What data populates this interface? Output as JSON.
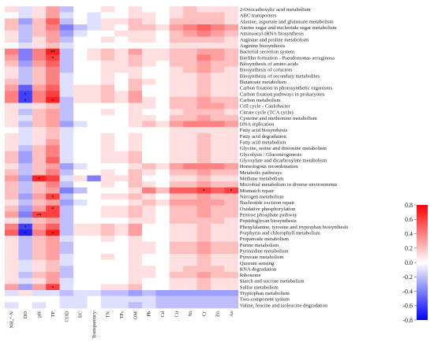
{
  "chart_data": {
    "type": "heatmap",
    "title": "",
    "xlabel": "",
    "ylabel": "",
    "columns": [
      "NH₄⁺-N",
      "DO",
      "pH",
      "TP",
      "COD",
      "EC",
      "Transparency",
      "TN",
      "TPₛ",
      "OM",
      "Pb",
      "Cd",
      "Cu",
      "Ni",
      "Cr",
      "Zn",
      "As"
    ],
    "rows": [
      "2-Oxocarboxylic acid metabolism",
      "ABC transporters",
      "Alanine, aspartate and glutamate metabolism",
      "Amino sugar and nucleotide sugar metabolism",
      "Aminoacyl-tRNA biosynthesis",
      "Arginine and proline metabolism",
      "Arginine biosynthesis",
      "Bacterial secretion system",
      "Biofilm formation - Pseudomonas aeruginosa",
      "Biosynthesis of amino acids",
      "Biosynthesis of cofactors",
      "Biosynthesis of secondary metabolites",
      "Butanoate metabolism",
      "Carbon fixation in photosynthetic organisms",
      "Carbon fixation pathways in prokaryotes",
      "Carbon metabolism",
      "Cell cycle - Caulobacter",
      "Citrate cycle (TCA cycle)",
      "Cysteine and methionine metabolism",
      "DNA replication",
      "Fatty acid biosynthesis",
      "Fatty acid degradation",
      "Fatty acid metabolism",
      "Glycine, serine and threonine metabolism",
      "Glycolysis / Gluconeogenesis",
      "Glyoxylate and dicarboxylate metabolism",
      "Homologous recombination",
      "Metabolic pathways",
      "Methane metabolism",
      "Microbial metabolism in diverse environments",
      "Mismatch repair",
      "Nitrogen metabolism",
      "Nucleotide excision repair",
      "Oxidative phosphorylation",
      "Pentose phosphate pathway",
      "Peptidoglycan biosynthesis",
      "Phenylalanine, tyrosine and tryptophan biosynthesis",
      "Porphyrin and chlorophyll metabolism",
      "Propanoate metabolism",
      "Purine metabolism",
      "Pyrimidine metabolism",
      "Pyruvate metabolism",
      "Quorum sensing",
      "RNA degradation",
      "Ribosome",
      "Starch and sucrose metabolism",
      "Sulfur metabolism",
      "Tryptophan metabolism",
      "Two-component system",
      "Valine, leucine and isoleucine degradation"
    ],
    "values": [
      [
        0.1,
        -0.1,
        0.1,
        0.3,
        -0.2,
        0.0,
        0.0,
        0.1,
        0.0,
        0.1,
        0.0,
        0.0,
        0.1,
        0.2,
        0.1,
        0.1,
        0.1
      ],
      [
        0.0,
        -0.1,
        0.1,
        0.3,
        -0.1,
        0.0,
        -0.1,
        0.0,
        0.0,
        0.1,
        0.1,
        0.0,
        0.1,
        0.2,
        0.2,
        0.2,
        0.1
      ],
      [
        0.2,
        -0.3,
        0.2,
        0.5,
        -0.2,
        0.0,
        -0.1,
        0.1,
        0.1,
        0.2,
        0.1,
        0.0,
        0.2,
        0.2,
        0.2,
        0.2,
        0.1
      ],
      [
        0.2,
        -0.2,
        0.2,
        0.4,
        -0.4,
        -0.2,
        -0.1,
        0.1,
        0.0,
        0.2,
        0.2,
        0.1,
        0.3,
        0.4,
        0.5,
        0.4,
        0.3
      ],
      [
        0.1,
        -0.2,
        0.2,
        0.3,
        -0.3,
        -0.1,
        0.0,
        0.0,
        0.1,
        0.1,
        0.1,
        0.0,
        0.2,
        0.3,
        0.4,
        0.3,
        0.2
      ],
      [
        0.1,
        -0.2,
        0.1,
        0.3,
        -0.2,
        0.0,
        0.0,
        0.1,
        0.0,
        0.1,
        0.1,
        0.0,
        0.2,
        0.2,
        0.2,
        0.2,
        0.1
      ],
      [
        0.0,
        -0.1,
        0.1,
        0.2,
        -0.1,
        0.0,
        0.0,
        0.0,
        0.0,
        0.0,
        0.0,
        0.0,
        0.1,
        0.1,
        0.1,
        0.1,
        0.1
      ],
      [
        0.4,
        -0.4,
        0.4,
        0.7,
        -0.2,
        0.0,
        0.1,
        0.2,
        0.1,
        0.3,
        0.1,
        0.1,
        0.2,
        0.2,
        0.3,
        0.3,
        0.2
      ],
      [
        0.3,
        -0.4,
        0.4,
        0.6,
        -0.2,
        0.0,
        0.1,
        0.2,
        0.1,
        0.2,
        0.1,
        0.1,
        0.2,
        0.2,
        0.4,
        0.3,
        0.2
      ],
      [
        0.2,
        -0.3,
        0.3,
        0.5,
        -0.2,
        0.0,
        0.0,
        0.1,
        0.1,
        0.2,
        0.1,
        0.0,
        0.2,
        0.2,
        0.3,
        0.2,
        0.2
      ],
      [
        0.1,
        -0.2,
        0.2,
        0.4,
        -0.2,
        0.0,
        0.0,
        0.1,
        0.1,
        0.1,
        0.0,
        0.0,
        0.1,
        0.2,
        0.3,
        0.2,
        0.1
      ],
      [
        0.1,
        -0.2,
        0.2,
        0.4,
        -0.1,
        0.0,
        0.0,
        0.1,
        0.0,
        0.1,
        0.0,
        0.0,
        0.1,
        0.1,
        0.2,
        0.1,
        0.1
      ],
      [
        0.2,
        -0.2,
        0.2,
        0.4,
        -0.1,
        0.0,
        0.0,
        0.1,
        0.0,
        0.2,
        0.1,
        0.0,
        0.1,
        0.1,
        0.2,
        0.1,
        0.1
      ],
      [
        0.3,
        -0.5,
        0.3,
        0.5,
        -0.1,
        0.1,
        0.1,
        0.2,
        0.0,
        0.2,
        0.0,
        0.0,
        0.1,
        0.1,
        0.2,
        0.1,
        0.1
      ],
      [
        0.4,
        -0.6,
        0.4,
        0.6,
        -0.1,
        0.1,
        0.1,
        0.2,
        0.1,
        0.3,
        0.0,
        0.0,
        0.1,
        0.1,
        0.2,
        0.1,
        0.1
      ],
      [
        0.4,
        -0.6,
        0.4,
        0.7,
        -0.2,
        0.1,
        0.1,
        0.2,
        0.1,
        0.3,
        0.1,
        0.0,
        0.2,
        0.2,
        0.3,
        0.2,
        0.2
      ],
      [
        0.1,
        -0.1,
        0.1,
        0.2,
        -0.2,
        0.0,
        0.0,
        0.0,
        0.0,
        0.1,
        0.1,
        0.0,
        0.2,
        0.2,
        0.3,
        0.3,
        0.2
      ],
      [
        0.1,
        -0.2,
        0.2,
        0.3,
        -0.2,
        0.0,
        0.0,
        0.1,
        0.0,
        0.1,
        0.0,
        0.0,
        0.1,
        0.2,
        0.2,
        0.2,
        0.1
      ],
      [
        0.1,
        -0.1,
        0.2,
        0.3,
        -0.2,
        0.0,
        0.0,
        0.0,
        0.0,
        0.1,
        0.1,
        0.0,
        0.2,
        0.2,
        0.3,
        0.2,
        0.2
      ],
      [
        0.1,
        -0.2,
        0.2,
        0.3,
        -0.3,
        -0.1,
        0.0,
        0.0,
        0.0,
        0.1,
        0.2,
        0.1,
        0.3,
        0.4,
        0.4,
        0.4,
        0.3
      ],
      [
        0.0,
        -0.1,
        0.1,
        0.2,
        -0.1,
        0.0,
        0.0,
        0.0,
        0.0,
        0.0,
        0.0,
        0.0,
        0.1,
        0.1,
        0.1,
        0.1,
        0.1
      ],
      [
        0.1,
        -0.1,
        0.1,
        0.2,
        -0.1,
        0.0,
        0.0,
        0.1,
        0.0,
        0.1,
        0.0,
        0.0,
        0.1,
        0.1,
        0.2,
        0.1,
        0.1
      ],
      [
        0.1,
        -0.1,
        0.1,
        0.3,
        -0.1,
        0.0,
        0.0,
        0.1,
        0.0,
        0.1,
        0.0,
        0.0,
        0.1,
        0.1,
        0.2,
        0.1,
        0.1
      ],
      [
        0.1,
        -0.2,
        0.2,
        0.4,
        -0.1,
        0.0,
        0.0,
        0.1,
        0.0,
        0.1,
        0.0,
        0.0,
        0.1,
        0.1,
        0.2,
        0.1,
        0.1
      ],
      [
        0.2,
        -0.3,
        0.2,
        0.4,
        -0.1,
        0.0,
        0.0,
        0.1,
        0.1,
        0.2,
        0.0,
        0.0,
        0.1,
        0.1,
        0.2,
        0.1,
        0.1
      ],
      [
        0.2,
        -0.3,
        0.2,
        0.5,
        -0.1,
        0.0,
        0.0,
        0.1,
        0.1,
        0.2,
        0.0,
        0.0,
        0.1,
        0.1,
        0.2,
        0.1,
        0.1
      ],
      [
        0.1,
        -0.2,
        0.2,
        0.3,
        -0.3,
        -0.1,
        0.0,
        0.0,
        0.0,
        0.1,
        0.2,
        0.1,
        0.3,
        0.4,
        0.4,
        0.4,
        0.3
      ],
      [
        0.2,
        -0.2,
        0.2,
        0.4,
        -0.2,
        0.0,
        0.0,
        0.1,
        0.0,
        0.2,
        0.1,
        0.0,
        0.2,
        0.2,
        0.3,
        0.2,
        0.2
      ],
      [
        0.3,
        -0.3,
        0.7,
        0.6,
        -0.1,
        0.1,
        -0.4,
        0.1,
        0.1,
        0.2,
        0.0,
        0.0,
        0.1,
        0.1,
        0.2,
        0.1,
        0.1
      ],
      [
        0.2,
        -0.2,
        0.2,
        0.4,
        -0.2,
        0.0,
        0.0,
        0.1,
        0.0,
        0.2,
        0.1,
        0.0,
        0.2,
        0.2,
        0.3,
        0.2,
        0.2
      ],
      [
        0.2,
        -0.2,
        0.2,
        0.3,
        -0.4,
        -0.2,
        0.0,
        0.0,
        0.0,
        0.1,
        0.4,
        0.2,
        0.5,
        0.5,
        0.6,
        0.5,
        0.6
      ],
      [
        0.2,
        -0.3,
        0.3,
        0.6,
        -0.2,
        0.0,
        0.0,
        0.1,
        0.1,
        0.2,
        0.1,
        0.0,
        0.2,
        0.2,
        0.3,
        0.2,
        0.2
      ],
      [
        0.1,
        -0.2,
        0.2,
        0.3,
        -0.3,
        -0.1,
        0.0,
        0.0,
        0.0,
        0.1,
        0.2,
        0.1,
        0.3,
        0.3,
        0.3,
        0.3,
        0.2
      ],
      [
        0.2,
        -0.3,
        0.3,
        0.6,
        -0.2,
        0.0,
        0.0,
        0.1,
        0.1,
        0.2,
        0.1,
        0.0,
        0.2,
        0.2,
        0.3,
        0.2,
        0.2
      ],
      [
        0.3,
        -0.4,
        0.6,
        0.6,
        -0.2,
        0.0,
        0.0,
        0.1,
        0.1,
        0.2,
        0.1,
        0.0,
        0.2,
        0.2,
        0.3,
        0.2,
        0.2
      ],
      [
        0.1,
        -0.2,
        0.2,
        0.3,
        -0.2,
        0.0,
        0.0,
        0.0,
        0.0,
        0.1,
        0.1,
        0.0,
        0.2,
        0.2,
        0.2,
        0.2,
        0.1
      ],
      [
        0.4,
        -0.6,
        0.3,
        0.5,
        -0.2,
        0.1,
        0.1,
        0.2,
        0.1,
        0.3,
        0.0,
        0.0,
        0.1,
        0.1,
        0.2,
        0.1,
        0.1
      ],
      [
        0.5,
        -0.7,
        0.4,
        0.7,
        -0.2,
        0.1,
        0.1,
        0.2,
        0.1,
        0.3,
        0.0,
        0.0,
        0.1,
        0.1,
        0.2,
        0.1,
        0.1
      ],
      [
        0.1,
        -0.2,
        0.2,
        0.3,
        -0.1,
        0.0,
        0.0,
        0.1,
        0.0,
        0.1,
        0.0,
        0.0,
        0.1,
        0.1,
        0.2,
        0.1,
        0.1
      ],
      [
        0.1,
        -0.2,
        0.2,
        0.3,
        -0.2,
        0.0,
        0.0,
        0.0,
        0.0,
        0.1,
        0.1,
        0.0,
        0.2,
        0.2,
        0.3,
        0.2,
        0.2
      ],
      [
        0.1,
        -0.2,
        0.2,
        0.3,
        -0.2,
        0.0,
        0.0,
        0.0,
        0.0,
        0.1,
        0.1,
        0.0,
        0.2,
        0.2,
        0.3,
        0.2,
        0.2
      ],
      [
        0.1,
        -0.2,
        0.2,
        0.3,
        -0.1,
        0.0,
        0.0,
        0.1,
        0.0,
        0.1,
        0.0,
        0.0,
        0.1,
        0.1,
        0.2,
        0.1,
        0.1
      ],
      [
        0.1,
        -0.1,
        0.1,
        0.2,
        -0.1,
        0.0,
        0.0,
        0.0,
        0.0,
        0.1,
        0.0,
        0.0,
        0.1,
        0.1,
        0.2,
        0.1,
        0.1
      ],
      [
        0.1,
        -0.1,
        0.1,
        0.2,
        -0.2,
        0.0,
        0.0,
        0.0,
        0.0,
        0.1,
        0.1,
        0.0,
        0.1,
        0.2,
        0.2,
        0.2,
        0.1
      ],
      [
        0.1,
        -0.2,
        0.2,
        0.3,
        -0.2,
        0.0,
        0.0,
        0.0,
        0.0,
        0.1,
        0.1,
        0.0,
        0.2,
        0.2,
        0.3,
        0.2,
        0.2
      ],
      [
        0.1,
        -0.1,
        0.1,
        0.3,
        -0.1,
        0.0,
        0.0,
        0.0,
        0.0,
        0.1,
        0.0,
        0.0,
        0.1,
        0.1,
        0.2,
        0.1,
        0.1
      ],
      [
        0.3,
        -0.3,
        0.3,
        0.6,
        -0.1,
        0.0,
        0.0,
        0.1,
        0.1,
        0.2,
        0.0,
        0.0,
        0.1,
        0.1,
        0.2,
        0.1,
        0.1
      ],
      [
        -0.1,
        0.1,
        -0.1,
        -0.1,
        -0.2,
        -0.1,
        -0.1,
        -0.2,
        -0.2,
        -0.3,
        -0.2,
        -0.3,
        -0.3,
        -0.3,
        -0.3,
        -0.3,
        -0.3
      ],
      [
        0.0,
        0.0,
        0.0,
        0.0,
        -0.1,
        -0.1,
        0.0,
        -0.1,
        -0.1,
        -0.1,
        -0.1,
        -0.2,
        -0.2,
        -0.2,
        -0.2,
        -0.2,
        -0.2
      ],
      [
        -0.1,
        0.0,
        -0.1,
        0.0,
        -0.1,
        -0.1,
        0.0,
        -0.1,
        -0.1,
        -0.2,
        -0.1,
        -0.2,
        -0.2,
        -0.2,
        -0.2,
        -0.2,
        -0.2
      ]
    ],
    "significance": [
      {
        "row": 7,
        "col": 3,
        "mark": "**"
      },
      {
        "row": 8,
        "col": 3,
        "mark": "*"
      },
      {
        "row": 14,
        "col": 1,
        "mark": "*"
      },
      {
        "row": 15,
        "col": 1,
        "mark": "*"
      },
      {
        "row": 15,
        "col": 3,
        "mark": "*"
      },
      {
        "row": 28,
        "col": 2,
        "mark": "*"
      },
      {
        "row": 30,
        "col": 14,
        "mark": "*"
      },
      {
        "row": 30,
        "col": 16,
        "mark": "*"
      },
      {
        "row": 31,
        "col": 3,
        "mark": "*"
      },
      {
        "row": 33,
        "col": 3,
        "mark": "*"
      },
      {
        "row": 34,
        "col": 2,
        "mark": "**"
      },
      {
        "row": 36,
        "col": 1,
        "mark": "*"
      },
      {
        "row": 37,
        "col": 1,
        "mark": "*"
      },
      {
        "row": 37,
        "col": 3,
        "mark": "*"
      },
      {
        "row": 46,
        "col": 3,
        "mark": "*"
      }
    ],
    "colorbar": {
      "min": -0.8,
      "max": 0.8,
      "ticks": [
        "0.8",
        "0.6",
        "0.4",
        "0.2",
        "0.0",
        "-0.2",
        "-0.4",
        "-0.6",
        "-0.8"
      ]
    },
    "colors": {
      "low": "#0000ff",
      "mid": "#ffffff",
      "high": "#ff0000"
    },
    "grid": false,
    "legend": "right"
  }
}
